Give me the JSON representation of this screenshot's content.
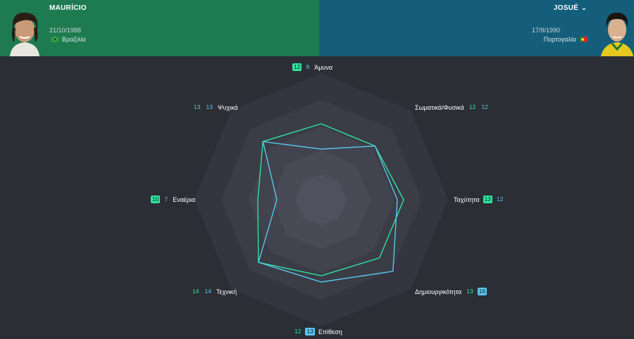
{
  "player_left": {
    "name": "MAURÍCIO",
    "dob": "21/10/1988",
    "nation": "Βραζιλία",
    "color": "#1e7a51"
  },
  "player_right": {
    "name": "JOSUÉ",
    "dob": "17/9/1990",
    "nation": "Πορτογαλία",
    "color": "#145e7b",
    "menu_icon": "chevron-down-icon"
  },
  "series_colors": {
    "left": "#2fe3a0",
    "right": "#5ac6ee"
  },
  "chart_data": {
    "type": "radar",
    "scale_max": 20,
    "axes": [
      {
        "label": "Άμυνα",
        "left": 12,
        "right": 8
      },
      {
        "label": "Σωματικά/Φυσικά",
        "left": 12,
        "right": 12
      },
      {
        "label": "Ταχύτητα",
        "left": 13,
        "right": 12
      },
      {
        "label": "Δημιουργικότητα",
        "left": 13,
        "right": 16
      },
      {
        "label": "Επίθεση",
        "left": 12,
        "right": 13
      },
      {
        "label": "Τεχνική",
        "left": 14,
        "right": 14
      },
      {
        "label": "Εναέρια",
        "left": 10,
        "right": 7
      },
      {
        "label": "Ψυχικά",
        "left": 13,
        "right": 13
      }
    ]
  }
}
